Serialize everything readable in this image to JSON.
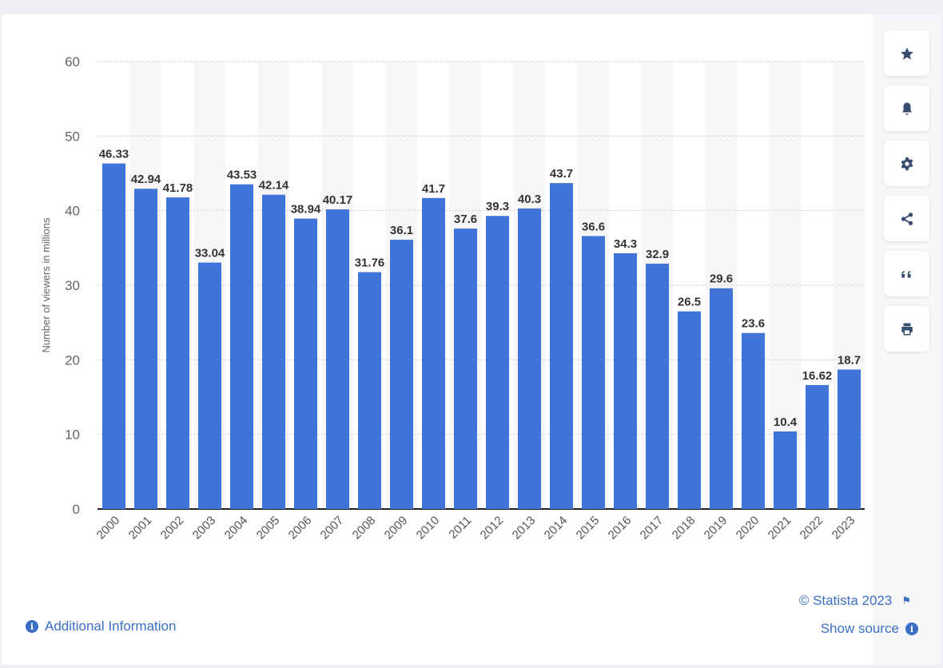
{
  "chart_data": {
    "type": "bar",
    "title": "",
    "xlabel": "",
    "ylabel": "Number of viewers in millions",
    "ylim": [
      0,
      60
    ],
    "yticks": [
      0,
      10,
      20,
      30,
      40,
      50,
      60
    ],
    "grid": true,
    "categories": [
      "2000",
      "2001",
      "2002",
      "2003",
      "2004",
      "2005",
      "2006",
      "2007",
      "2008",
      "2009",
      "2010",
      "2011",
      "2012",
      "2013",
      "2014",
      "2015",
      "2016",
      "2017",
      "2018",
      "2019",
      "2020",
      "2021",
      "2022",
      "2023"
    ],
    "values": [
      46.33,
      42.94,
      41.78,
      33.04,
      43.53,
      42.14,
      38.94,
      40.17,
      31.76,
      36.1,
      41.7,
      37.6,
      39.3,
      40.3,
      43.7,
      36.6,
      34.3,
      32.9,
      26.5,
      29.6,
      23.6,
      10.4,
      16.62,
      18.7
    ],
    "bar_color": "#4174d9"
  },
  "footer": {
    "additional_info": "Additional Information",
    "copyright": "© Statista 2023",
    "show_source": "Show source"
  },
  "toolbar": [
    "star-icon",
    "bell-icon",
    "gear-icon",
    "share-icon",
    "quote-icon",
    "print-icon"
  ]
}
